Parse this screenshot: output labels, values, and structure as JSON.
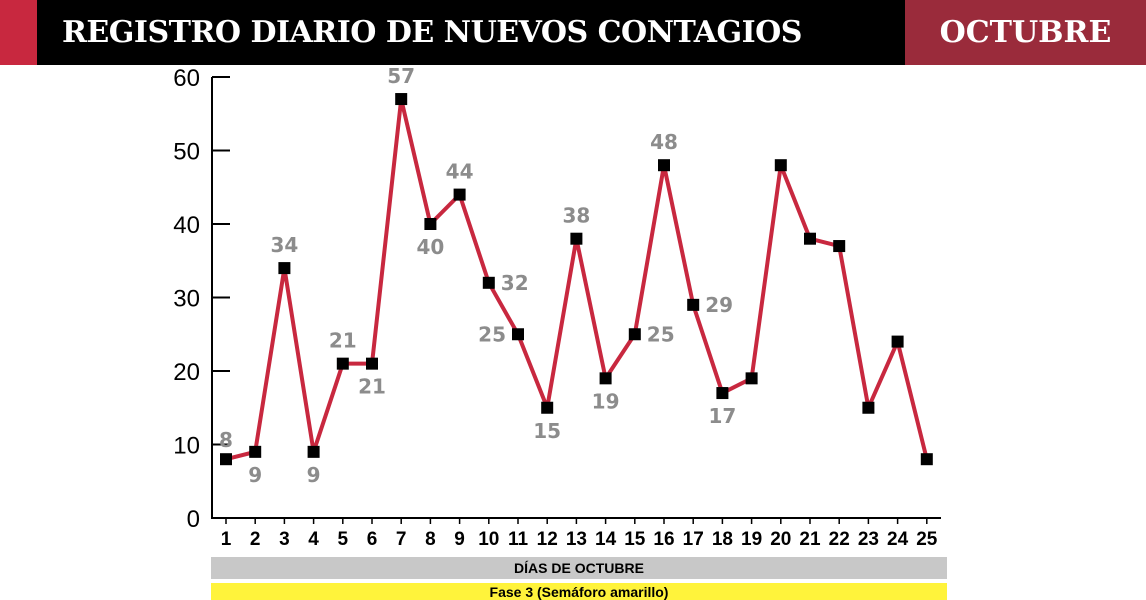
{
  "header": {
    "title": "REGISTRO DIARIO DE NUEVOS CONTAGIOS",
    "month": "OCTUBRE"
  },
  "chart_data": {
    "type": "line",
    "title": "REGISTRO DIARIO DE NUEVOS CONTAGIOS",
    "xlabel": "DÍAS DE OCTUBRE",
    "ylabel": "",
    "ylim": [
      0,
      60
    ],
    "yticks": [
      0,
      10,
      20,
      30,
      40,
      50,
      60
    ],
    "x": [
      1,
      2,
      3,
      4,
      5,
      6,
      7,
      8,
      9,
      10,
      11,
      12,
      13,
      14,
      15,
      16,
      17,
      18,
      19,
      20,
      21,
      22,
      23,
      24,
      25
    ],
    "series": [
      {
        "name": "Nuevos contagios",
        "values": [
          8,
          9,
          34,
          9,
          21,
          21,
          57,
          40,
          44,
          32,
          25,
          15,
          38,
          19,
          25,
          48,
          29,
          17,
          19,
          48,
          38,
          37,
          15,
          24,
          8
        ]
      }
    ],
    "data_labels": [
      "8",
      "9",
      "34",
      "9",
      "21",
      "21",
      "57",
      "40",
      "44",
      "32",
      "25",
      "15",
      "38",
      "19",
      "25",
      "48",
      "29",
      "17",
      null,
      null,
      null,
      null,
      null,
      null,
      null
    ],
    "annotation": "Fase 3 (Semáforo amarillo)",
    "colors": {
      "line": "#c8283f",
      "marker": "#000000",
      "label": "#8c8c8c"
    }
  }
}
